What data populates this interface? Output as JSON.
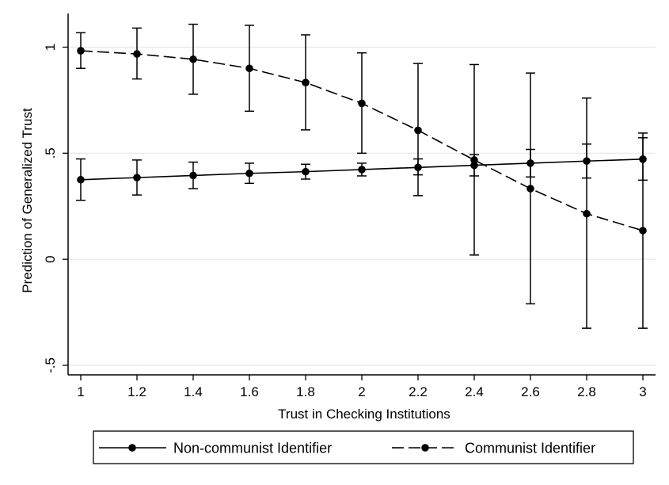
{
  "chart_data": {
    "type": "line",
    "title": "",
    "xlabel": "Trust in Checking Institutions",
    "ylabel": "Prediction of Generalized Trust",
    "xlim": [
      1,
      3
    ],
    "ylim": [
      -0.5,
      1.15
    ],
    "x_ticks": [
      1,
      1.2,
      1.4,
      1.6,
      1.8,
      2,
      2.2,
      2.4,
      2.6,
      2.8,
      3
    ],
    "x_tick_labels": [
      "1",
      "1.2",
      "1.4",
      "1.6",
      "1.8",
      "2",
      "2.2",
      "2.4",
      "2.6",
      "2.8",
      "3"
    ],
    "y_ticks": [
      -0.5,
      0,
      0.5,
      1
    ],
    "y_tick_labels": [
      "-.5",
      "0",
      ".5",
      "1"
    ],
    "grid": true,
    "legend_position": "bottom",
    "series": [
      {
        "name": "Non-communist Identifier",
        "line_style": "solid",
        "x": [
          1,
          1.2,
          1.4,
          1.6,
          1.8,
          2,
          2.2,
          2.4,
          2.6,
          2.8,
          3
        ],
        "y": [
          0.375,
          0.385,
          0.395,
          0.405,
          0.413,
          0.423,
          0.433,
          0.443,
          0.453,
          0.463,
          0.472
        ],
        "ci_low": [
          0.278,
          0.303,
          0.333,
          0.358,
          0.378,
          0.393,
          0.398,
          0.393,
          0.388,
          0.383,
          0.373
        ],
        "ci_high": [
          0.473,
          0.468,
          0.458,
          0.453,
          0.448,
          0.453,
          0.473,
          0.493,
          0.518,
          0.543,
          0.573
        ]
      },
      {
        "name": "Communist Identifier",
        "line_style": "dashed",
        "x": [
          1,
          1.2,
          1.4,
          1.6,
          1.8,
          2,
          2.2,
          2.4,
          2.6,
          2.8,
          3
        ],
        "y": [
          0.983,
          0.968,
          0.943,
          0.9,
          0.833,
          0.735,
          0.608,
          0.468,
          0.333,
          0.215,
          0.135
        ],
        "ci_low": [
          0.9,
          0.85,
          0.778,
          0.698,
          0.61,
          0.5,
          0.3,
          0.02,
          -0.21,
          -0.325,
          -0.325
        ],
        "ci_high": [
          1.068,
          1.09,
          1.108,
          1.103,
          1.058,
          0.973,
          0.923,
          0.918,
          0.878,
          0.76,
          0.595
        ]
      }
    ],
    "colors": {
      "line": "#000000",
      "grid": "#e6e6e6",
      "background": "#ffffff"
    }
  }
}
